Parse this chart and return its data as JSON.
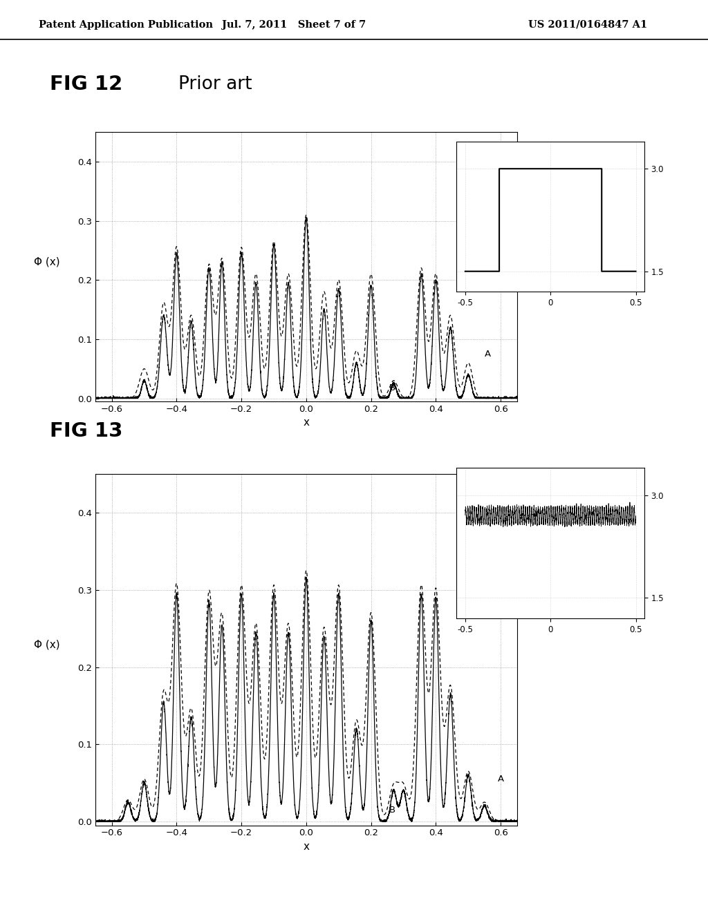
{
  "header_left": "Patent Application Publication",
  "header_mid": "Jul. 7, 2011   Sheet 7 of 7",
  "header_right": "US 2011/0164847 A1",
  "fig12_title": "FIG 12",
  "fig12_subtitle": "Prior art",
  "fig13_title": "FIG 13",
  "ylabel": "Φ (x)",
  "xlabel": "x",
  "xlim": [
    -0.65,
    0.65
  ],
  "ylim": [
    -0.005,
    0.45
  ],
  "xticks": [
    -0.6,
    -0.4,
    -0.2,
    0,
    0.2,
    0.4,
    0.6
  ],
  "yticks": [
    0,
    0.1,
    0.2,
    0.3,
    0.4
  ],
  "background_color": "#ffffff"
}
